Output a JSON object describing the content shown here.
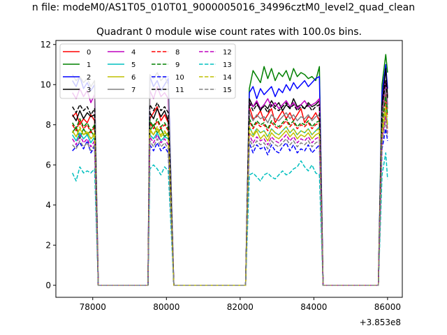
{
  "figure": {
    "suptitle": "n file: modeM0/AS1T05_010T01_9000005016_34996cztM0_level2_quad_clean",
    "title": "Quadrant 0 module wise count rates with 100.0s bins.",
    "offset_text": "+3.853e8"
  },
  "chart_data": {
    "type": "line",
    "title": "Quadrant 0 module wise count rates with 100.0s bins.",
    "xlabel": "",
    "ylabel": "",
    "x_offset": 385300000,
    "xlim": [
      77000,
      86400
    ],
    "ylim": [
      -0.6,
      12.2
    ],
    "x_ticks": [
      78000,
      80000,
      82000,
      84000,
      86000
    ],
    "y_ticks": [
      0,
      2,
      4,
      6,
      8,
      10,
      12
    ],
    "grid": false,
    "legend": {
      "placement": "top-left",
      "columns": 4
    },
    "segments": [
      {
        "x": [
          77450,
          77550,
          77650,
          77750,
          77850,
          77950,
          78050
        ]
      },
      {
        "x": [
          79500,
          79550,
          79650,
          79750,
          79850,
          79950,
          80050
        ]
      },
      {
        "x": [
          82150,
          82250,
          82350,
          82450,
          82550,
          82650,
          82750,
          82850,
          82950,
          83050,
          83150,
          83250,
          83350,
          83450,
          83550,
          83650,
          83750,
          83850,
          83950,
          84050,
          84150
        ]
      },
      {
        "x": [
          85850,
          85950,
          86000
        ]
      }
    ],
    "zero_runs": [
      [
        78150,
        79500
      ],
      [
        80200,
        82150
      ],
      [
        84250,
        85750
      ]
    ],
    "series": [
      {
        "name": "0",
        "color": "#ff0000",
        "style": "solid",
        "base": 8.2,
        "seg_values": [
          [
            8.4,
            8.6,
            8.0,
            8.3,
            8.1,
            8.5,
            8.2
          ],
          [
            8.0,
            8.3,
            8.6,
            8.9,
            8.2,
            8.5,
            8.1
          ],
          [
            8.6,
            8.9,
            8.3,
            8.4,
            8.7,
            8.2,
            8.5,
            8.8,
            8.1,
            8.4,
            8.7,
            8.3,
            8.6,
            8.2,
            8.5,
            8.8,
            8.1,
            8.4,
            8.3,
            8.6,
            8.2
          ],
          [
            8.4,
            9.6,
            8.8
          ]
        ]
      },
      {
        "name": "1",
        "color": "#008000",
        "style": "solid",
        "base": 7.8,
        "seg_values": [
          [
            7.6,
            7.9,
            7.3,
            7.8,
            7.5,
            7.7,
            7.4
          ],
          [
            7.3,
            7.7,
            8.0,
            7.6,
            7.8,
            7.4,
            7.6
          ],
          [
            8.6,
            9.8,
            10.7,
            10.4,
            10.1,
            10.9,
            10.3,
            10.8,
            10.2,
            10.6,
            10.4,
            10.7,
            10.2,
            10.8,
            10.4,
            10.6,
            10.5,
            10.3,
            10.4,
            10.2,
            10.9
          ],
          [
            10.0,
            11.5,
            10.6
          ]
        ]
      },
      {
        "name": "2",
        "color": "#0000ff",
        "style": "solid",
        "base": 9.8,
        "seg_values": [
          [
            10.2,
            9.9,
            10.4,
            9.8,
            10.1,
            9.7,
            10.0
          ],
          [
            9.8,
            10.4,
            9.9,
            10.2,
            9.7,
            10.0,
            10.3
          ],
          [
            9.2,
            9.6,
            9.9,
            9.3,
            9.8,
            9.5,
            9.7,
            9.9,
            9.4,
            9.8,
            9.6,
            10.0,
            9.7,
            10.1,
            9.8,
            10.0,
            10.2,
            9.9,
            10.1,
            10.3,
            10.4
          ],
          [
            9.6,
            11.0,
            9.8
          ]
        ]
      },
      {
        "name": "3",
        "color": "#000000",
        "style": "solid",
        "base": 8.4,
        "seg_values": [
          [
            8.5,
            8.2,
            8.7,
            8.3,
            8.6,
            8.4,
            8.5
          ],
          [
            8.1,
            8.6,
            8.3,
            8.8,
            8.4,
            8.7,
            8.2
          ],
          [
            8.8,
            9.3,
            8.9,
            9.1,
            8.7,
            9.0,
            8.8,
            9.2,
            8.9,
            9.1,
            8.7,
            9.0,
            8.8,
            9.3,
            8.9,
            9.0,
            8.8,
            9.1,
            8.9,
            9.0,
            9.2
          ],
          [
            9.0,
            10.8,
            9.4
          ]
        ]
      },
      {
        "name": "4",
        "color": "#bf00bf",
        "style": "solid",
        "base": 9.2,
        "seg_values": [
          [
            9.6,
            9.3,
            9.8,
            9.4,
            9.7,
            9.1,
            9.5
          ],
          [
            9.2,
            9.7,
            9.3,
            9.9,
            9.4,
            9.6,
            9.3
          ],
          [
            8.8,
            9.1,
            8.9,
            9.2,
            8.8,
            9.0,
            9.3,
            8.9,
            9.1,
            8.8,
            9.0,
            9.2,
            8.9,
            9.1,
            8.8,
            9.0,
            9.2,
            8.9,
            9.0,
            9.1,
            9.3
          ],
          [
            8.6,
            10.2,
            9.0
          ]
        ]
      },
      {
        "name": "5",
        "color": "#00bfbf",
        "style": "solid",
        "base": 7.4,
        "seg_values": [
          [
            7.5,
            7.2,
            7.6,
            7.3,
            7.5,
            7.1,
            7.4
          ],
          [
            7.2,
            7.5,
            7.3,
            7.6,
            7.2,
            7.4,
            7.3
          ],
          [
            7.6,
            7.9,
            7.5,
            7.8,
            7.6,
            7.7,
            7.4,
            7.8,
            7.6,
            7.5,
            7.7,
            7.9,
            7.6,
            7.8,
            7.5,
            7.7,
            7.6,
            7.8,
            7.5,
            7.7,
            7.9
          ],
          [
            7.6,
            8.8,
            8.0
          ]
        ]
      },
      {
        "name": "6",
        "color": "#bfbf00",
        "style": "solid",
        "base": 7.5,
        "seg_values": [
          [
            7.7,
            7.4,
            7.8,
            7.5,
            7.6,
            7.3,
            7.5
          ],
          [
            7.4,
            7.7,
            7.5,
            7.8,
            7.4,
            7.6,
            7.5
          ],
          [
            7.3,
            7.6,
            7.4,
            7.7,
            7.3,
            7.5,
            7.2,
            7.6,
            7.4,
            7.3,
            7.5,
            7.7,
            7.4,
            7.6,
            7.3,
            7.5,
            7.4,
            7.6,
            7.3,
            7.5,
            7.6
          ],
          [
            7.5,
            8.6,
            7.8
          ]
        ]
      },
      {
        "name": "7",
        "color": "#808080",
        "style": "solid",
        "base": 10.0,
        "seg_values": [
          [
            10.5,
            10.2,
            10.4,
            10.1,
            10.3,
            9.9,
            10.2
          ],
          [
            10.1,
            10.5,
            10.3,
            10.6,
            10.2,
            10.4,
            10.0
          ],
          [
            8.3,
            8.6,
            8.2,
            8.5,
            8.3,
            8.4,
            8.1,
            8.5,
            8.3,
            8.2,
            8.4,
            8.6,
            8.3,
            8.5,
            8.2,
            8.4,
            8.3,
            8.5,
            8.2,
            8.4,
            8.5
          ],
          [
            8.4,
            9.8,
            8.8
          ]
        ]
      },
      {
        "name": "8",
        "color": "#ff0000",
        "style": "dashed",
        "base": 7.9,
        "seg_values": [
          [
            8.0,
            7.7,
            8.2,
            7.8,
            8.0,
            7.6,
            7.9
          ],
          [
            7.7,
            8.1,
            7.8,
            8.2,
            7.8,
            8.0,
            7.7
          ],
          [
            7.9,
            8.2,
            7.8,
            8.1,
            7.9,
            8.0,
            7.7,
            8.1,
            7.9,
            7.8,
            8.0,
            8.2,
            7.9,
            8.1,
            7.8,
            8.0,
            7.9,
            8.1,
            7.8,
            8.0,
            8.1
          ],
          [
            8.0,
            9.2,
            8.4
          ]
        ]
      },
      {
        "name": "9",
        "color": "#008000",
        "style": "dashed",
        "base": 8.0,
        "seg_values": [
          [
            8.1,
            7.8,
            8.3,
            7.9,
            8.1,
            7.7,
            8.0
          ],
          [
            7.8,
            8.2,
            7.9,
            8.3,
            7.9,
            8.1,
            7.8
          ],
          [
            8.0,
            8.3,
            7.9,
            8.2,
            8.0,
            8.1,
            7.8,
            8.2,
            8.0,
            7.9,
            8.1,
            8.3,
            8.0,
            8.2,
            7.9,
            8.1,
            8.0,
            8.2,
            7.9,
            8.1,
            8.2
          ],
          [
            8.1,
            9.4,
            8.5
          ]
        ]
      },
      {
        "name": "10",
        "color": "#0000ff",
        "style": "dashed",
        "base": 6.8,
        "seg_values": [
          [
            6.7,
            6.9,
            7.1,
            6.8,
            7.2,
            6.6,
            6.9
          ],
          [
            6.6,
            7.0,
            6.7,
            7.1,
            6.7,
            6.9,
            6.6
          ],
          [
            6.8,
            7.1,
            6.6,
            7.0,
            6.8,
            6.9,
            6.5,
            7.0,
            6.7,
            6.6,
            6.9,
            7.1,
            6.7,
            7.0,
            6.6,
            6.8,
            6.7,
            7.0,
            6.6,
            6.8,
            7.0
          ],
          [
            6.8,
            7.8,
            7.2
          ]
        ]
      },
      {
        "name": "11",
        "color": "#000000",
        "style": "dashed",
        "base": 8.8,
        "seg_values": [
          [
            8.9,
            8.6,
            9.0,
            8.7,
            8.9,
            8.5,
            8.8
          ],
          [
            8.6,
            9.0,
            8.7,
            9.1,
            8.7,
            8.9,
            8.6
          ],
          [
            8.8,
            9.1,
            8.7,
            9.0,
            8.8,
            8.9,
            8.6,
            9.0,
            8.8,
            8.7,
            8.9,
            9.1,
            8.8,
            9.0,
            8.7,
            8.9,
            8.8,
            9.0,
            8.7,
            8.9,
            9.0
          ],
          [
            8.9,
            10.2,
            9.3
          ]
        ]
      },
      {
        "name": "12",
        "color": "#bf00bf",
        "style": "dashed",
        "base": 7.2,
        "seg_values": [
          [
            7.3,
            7.0,
            7.5,
            7.1,
            7.3,
            6.9,
            7.2
          ],
          [
            7.0,
            7.4,
            7.1,
            7.5,
            7.1,
            7.3,
            7.0
          ],
          [
            7.2,
            7.5,
            7.1,
            7.4,
            7.2,
            7.3,
            7.0,
            7.4,
            7.2,
            7.1,
            7.3,
            7.5,
            7.2,
            7.4,
            7.1,
            7.3,
            7.2,
            7.4,
            7.1,
            7.3,
            7.4
          ],
          [
            7.3,
            8.4,
            7.6
          ]
        ]
      },
      {
        "name": "13",
        "color": "#00bfbf",
        "style": "dashed",
        "base": 5.6,
        "seg_values": [
          [
            5.6,
            5.2,
            5.9,
            5.6,
            5.7,
            5.6,
            5.8
          ],
          [
            5.6,
            5.8,
            6.0,
            5.8,
            5.5,
            5.9,
            5.7
          ],
          [
            5.4,
            5.5,
            5.6,
            5.4,
            5.2,
            5.5,
            5.6,
            5.4,
            5.3,
            5.5,
            5.7,
            5.5,
            5.6,
            5.8,
            5.9,
            6.2,
            5.9,
            5.7,
            6.0,
            5.6,
            5.5
          ],
          [
            5.5,
            6.6,
            5.3
          ]
        ]
      },
      {
        "name": "14",
        "color": "#bfbf00",
        "style": "dashed",
        "base": 7.6,
        "seg_values": [
          [
            7.7,
            7.4,
            7.9,
            7.5,
            7.7,
            7.3,
            7.6
          ],
          [
            7.4,
            7.8,
            7.5,
            7.9,
            7.5,
            7.7,
            7.4
          ],
          [
            7.6,
            7.9,
            7.5,
            7.8,
            7.6,
            7.7,
            7.4,
            7.8,
            7.6,
            7.5,
            7.7,
            7.9,
            7.6,
            7.8,
            7.5,
            7.7,
            7.6,
            7.8,
            7.5,
            7.7,
            7.8
          ],
          [
            7.7,
            8.9,
            8.0
          ]
        ]
      },
      {
        "name": "15",
        "color": "#808080",
        "style": "dashed",
        "base": 6.9,
        "seg_values": [
          [
            7.0,
            6.8,
            7.2,
            6.9,
            7.1,
            6.7,
            7.0
          ],
          [
            6.8,
            7.2,
            6.9,
            7.3,
            6.9,
            7.1,
            6.8
          ],
          [
            7.0,
            7.3,
            6.9,
            7.2,
            7.0,
            7.1,
            6.8,
            7.2,
            7.0,
            6.9,
            7.1,
            7.3,
            7.0,
            7.2,
            6.9,
            7.1,
            7.0,
            7.2,
            6.9,
            7.1,
            7.2
          ],
          [
            7.1,
            8.2,
            7.4
          ]
        ]
      }
    ]
  }
}
